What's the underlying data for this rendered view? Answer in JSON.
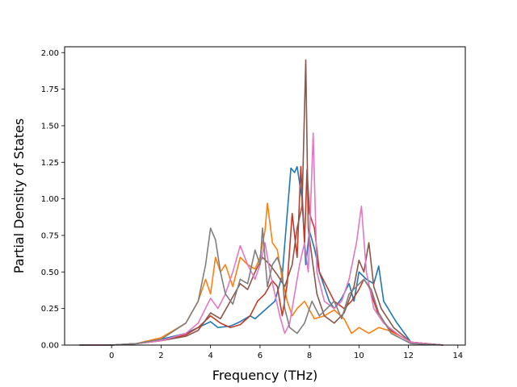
{
  "chart_data": {
    "type": "line",
    "title": "",
    "xlabel": "Frequency (THz)",
    "ylabel": "Partial Density of States",
    "xlim": [
      -1.9,
      14.3
    ],
    "ylim": [
      0,
      2.04
    ],
    "xticks": [
      0,
      2,
      4,
      6,
      8,
      10,
      12,
      14
    ],
    "yticks": [
      0.0,
      0.25,
      0.5,
      0.75,
      1.0,
      1.25,
      1.5,
      1.75,
      2.0
    ],
    "xtick_labels": [
      "0",
      "2",
      "4",
      "6",
      "8",
      "10",
      "12",
      "14"
    ],
    "ytick_labels": [
      "0.00",
      "0.25",
      "0.50",
      "0.75",
      "1.00",
      "1.25",
      "1.50",
      "1.75",
      "2.00"
    ],
    "grid": false,
    "legend": "none",
    "series": [
      {
        "color": "#1f77b4",
        "points": [
          [
            -1.3,
            0
          ],
          [
            0,
            0
          ],
          [
            1,
            0.01
          ],
          [
            2,
            0.04
          ],
          [
            3,
            0.08
          ],
          [
            3.5,
            0.12
          ],
          [
            4,
            0.16
          ],
          [
            4.3,
            0.12
          ],
          [
            4.8,
            0.13
          ],
          [
            5.2,
            0.16
          ],
          [
            5.6,
            0.2
          ],
          [
            5.8,
            0.18
          ],
          [
            6.2,
            0.24
          ],
          [
            6.6,
            0.3
          ],
          [
            6.9,
            0.48
          ],
          [
            7.1,
            0.9
          ],
          [
            7.25,
            1.21
          ],
          [
            7.4,
            1.18
          ],
          [
            7.5,
            1.22
          ],
          [
            7.7,
            1.0
          ],
          [
            7.85,
            0.55
          ],
          [
            8.0,
            0.78
          ],
          [
            8.2,
            0.66
          ],
          [
            8.4,
            0.5
          ],
          [
            8.6,
            0.4
          ],
          [
            8.8,
            0.3
          ],
          [
            9.0,
            0.25
          ],
          [
            9.3,
            0.32
          ],
          [
            9.6,
            0.42
          ],
          [
            9.8,
            0.3
          ],
          [
            10.0,
            0.5
          ],
          [
            10.3,
            0.45
          ],
          [
            10.6,
            0.42
          ],
          [
            10.8,
            0.54
          ],
          [
            11.0,
            0.3
          ],
          [
            11.5,
            0.16
          ],
          [
            12.1,
            0.02
          ],
          [
            13.4,
            0
          ]
        ]
      },
      {
        "color": "#ff7f0e",
        "points": [
          [
            -1.3,
            0
          ],
          [
            0,
            0
          ],
          [
            1,
            0.01
          ],
          [
            2,
            0.05
          ],
          [
            3,
            0.15
          ],
          [
            3.5,
            0.3
          ],
          [
            3.8,
            0.45
          ],
          [
            4.0,
            0.35
          ],
          [
            4.2,
            0.6
          ],
          [
            4.4,
            0.5
          ],
          [
            4.6,
            0.55
          ],
          [
            4.9,
            0.4
          ],
          [
            5.2,
            0.6
          ],
          [
            5.5,
            0.55
          ],
          [
            5.8,
            0.52
          ],
          [
            6.0,
            0.6
          ],
          [
            6.2,
            0.78
          ],
          [
            6.3,
            0.97
          ],
          [
            6.5,
            0.7
          ],
          [
            6.7,
            0.65
          ],
          [
            6.9,
            0.45
          ],
          [
            7.1,
            0.3
          ],
          [
            7.3,
            0.2
          ],
          [
            7.5,
            0.25
          ],
          [
            7.8,
            0.3
          ],
          [
            8.2,
            0.18
          ],
          [
            8.6,
            0.2
          ],
          [
            9.0,
            0.24
          ],
          [
            9.4,
            0.18
          ],
          [
            9.7,
            0.08
          ],
          [
            10.0,
            0.12
          ],
          [
            10.4,
            0.08
          ],
          [
            10.8,
            0.12
          ],
          [
            11.2,
            0.1
          ],
          [
            11.8,
            0.05
          ],
          [
            12.1,
            0.02
          ],
          [
            13.4,
            0
          ]
        ]
      },
      {
        "color": "#c43a2a",
        "points": [
          [
            -1.3,
            0
          ],
          [
            0,
            0
          ],
          [
            1,
            0.01
          ],
          [
            2,
            0.03
          ],
          [
            3,
            0.07
          ],
          [
            3.5,
            0.12
          ],
          [
            4,
            0.2
          ],
          [
            4.4,
            0.15
          ],
          [
            4.8,
            0.12
          ],
          [
            5.2,
            0.14
          ],
          [
            5.6,
            0.2
          ],
          [
            5.9,
            0.3
          ],
          [
            6.2,
            0.35
          ],
          [
            6.5,
            0.44
          ],
          [
            6.7,
            0.4
          ],
          [
            6.9,
            0.2
          ],
          [
            7.1,
            0.42
          ],
          [
            7.3,
            0.9
          ],
          [
            7.5,
            0.6
          ],
          [
            7.65,
            1.22
          ],
          [
            7.8,
            0.7
          ],
          [
            7.9,
            1.2
          ],
          [
            8.0,
            0.9
          ],
          [
            8.2,
            0.8
          ],
          [
            8.4,
            0.5
          ],
          [
            8.7,
            0.4
          ],
          [
            9.0,
            0.3
          ],
          [
            9.4,
            0.25
          ],
          [
            9.7,
            0.3
          ],
          [
            10.0,
            0.38
          ],
          [
            10.2,
            0.45
          ],
          [
            10.4,
            0.4
          ],
          [
            10.6,
            0.3
          ],
          [
            10.8,
            0.2
          ],
          [
            11.3,
            0.1
          ],
          [
            12.1,
            0.02
          ],
          [
            13.4,
            0
          ]
        ]
      },
      {
        "color": "#8c564b",
        "points": [
          [
            -1.3,
            0
          ],
          [
            0,
            0
          ],
          [
            1,
            0.01
          ],
          [
            2,
            0.03
          ],
          [
            3,
            0.06
          ],
          [
            3.5,
            0.1
          ],
          [
            4,
            0.22
          ],
          [
            4.4,
            0.18
          ],
          [
            4.8,
            0.3
          ],
          [
            5.2,
            0.42
          ],
          [
            5.5,
            0.38
          ],
          [
            5.8,
            0.5
          ],
          [
            6.1,
            0.6
          ],
          [
            6.4,
            0.55
          ],
          [
            6.7,
            0.48
          ],
          [
            7.0,
            0.4
          ],
          [
            7.3,
            0.55
          ],
          [
            7.5,
            0.8
          ],
          [
            7.7,
            0.95
          ],
          [
            7.85,
            1.95
          ],
          [
            7.95,
            0.8
          ],
          [
            8.1,
            0.6
          ],
          [
            8.3,
            0.35
          ],
          [
            8.6,
            0.2
          ],
          [
            9.0,
            0.15
          ],
          [
            9.4,
            0.22
          ],
          [
            9.8,
            0.4
          ],
          [
            10.0,
            0.58
          ],
          [
            10.2,
            0.5
          ],
          [
            10.4,
            0.7
          ],
          [
            10.6,
            0.4
          ],
          [
            10.9,
            0.25
          ],
          [
            11.4,
            0.12
          ],
          [
            12.1,
            0.02
          ],
          [
            13.4,
            0
          ]
        ]
      },
      {
        "color": "#e377c2",
        "points": [
          [
            -1.3,
            0
          ],
          [
            0,
            0
          ],
          [
            1,
            0.01
          ],
          [
            2,
            0.03
          ],
          [
            3,
            0.08
          ],
          [
            3.5,
            0.15
          ],
          [
            4,
            0.32
          ],
          [
            4.3,
            0.25
          ],
          [
            4.6,
            0.35
          ],
          [
            4.9,
            0.5
          ],
          [
            5.2,
            0.68
          ],
          [
            5.5,
            0.55
          ],
          [
            5.8,
            0.45
          ],
          [
            6.0,
            0.55
          ],
          [
            6.2,
            0.7
          ],
          [
            6.4,
            0.5
          ],
          [
            6.6,
            0.35
          ],
          [
            6.8,
            0.2
          ],
          [
            7.0,
            0.08
          ],
          [
            7.2,
            0.15
          ],
          [
            7.4,
            0.35
          ],
          [
            7.6,
            0.55
          ],
          [
            7.8,
            0.7
          ],
          [
            7.95,
            0.5
          ],
          [
            8.15,
            1.45
          ],
          [
            8.3,
            0.5
          ],
          [
            8.6,
            0.3
          ],
          [
            9.0,
            0.25
          ],
          [
            9.3,
            0.3
          ],
          [
            9.6,
            0.45
          ],
          [
            9.9,
            0.7
          ],
          [
            10.1,
            0.95
          ],
          [
            10.3,
            0.5
          ],
          [
            10.6,
            0.25
          ],
          [
            11.0,
            0.15
          ],
          [
            11.6,
            0.07
          ],
          [
            12.1,
            0.02
          ],
          [
            13.4,
            0
          ]
        ]
      },
      {
        "color": "#7f7f7f",
        "points": [
          [
            -1.3,
            0
          ],
          [
            0,
            0
          ],
          [
            1,
            0.01
          ],
          [
            2,
            0.04
          ],
          [
            3,
            0.15
          ],
          [
            3.5,
            0.3
          ],
          [
            3.8,
            0.55
          ],
          [
            4.0,
            0.8
          ],
          [
            4.2,
            0.72
          ],
          [
            4.4,
            0.5
          ],
          [
            4.6,
            0.35
          ],
          [
            4.9,
            0.28
          ],
          [
            5.2,
            0.45
          ],
          [
            5.5,
            0.42
          ],
          [
            5.8,
            0.65
          ],
          [
            6.0,
            0.55
          ],
          [
            6.1,
            0.8
          ],
          [
            6.3,
            0.4
          ],
          [
            6.5,
            0.55
          ],
          [
            6.7,
            0.6
          ],
          [
            6.9,
            0.5
          ],
          [
            7.0,
            0.25
          ],
          [
            7.2,
            0.12
          ],
          [
            7.5,
            0.08
          ],
          [
            7.8,
            0.15
          ],
          [
            8.1,
            0.3
          ],
          [
            8.4,
            0.2
          ],
          [
            8.7,
            0.25
          ],
          [
            9.0,
            0.3
          ],
          [
            9.3,
            0.18
          ],
          [
            9.6,
            0.35
          ],
          [
            9.9,
            0.4
          ],
          [
            10.2,
            0.45
          ],
          [
            10.5,
            0.38
          ],
          [
            10.8,
            0.22
          ],
          [
            11.3,
            0.08
          ],
          [
            12.1,
            0.01
          ],
          [
            13.4,
            0
          ]
        ]
      }
    ]
  }
}
